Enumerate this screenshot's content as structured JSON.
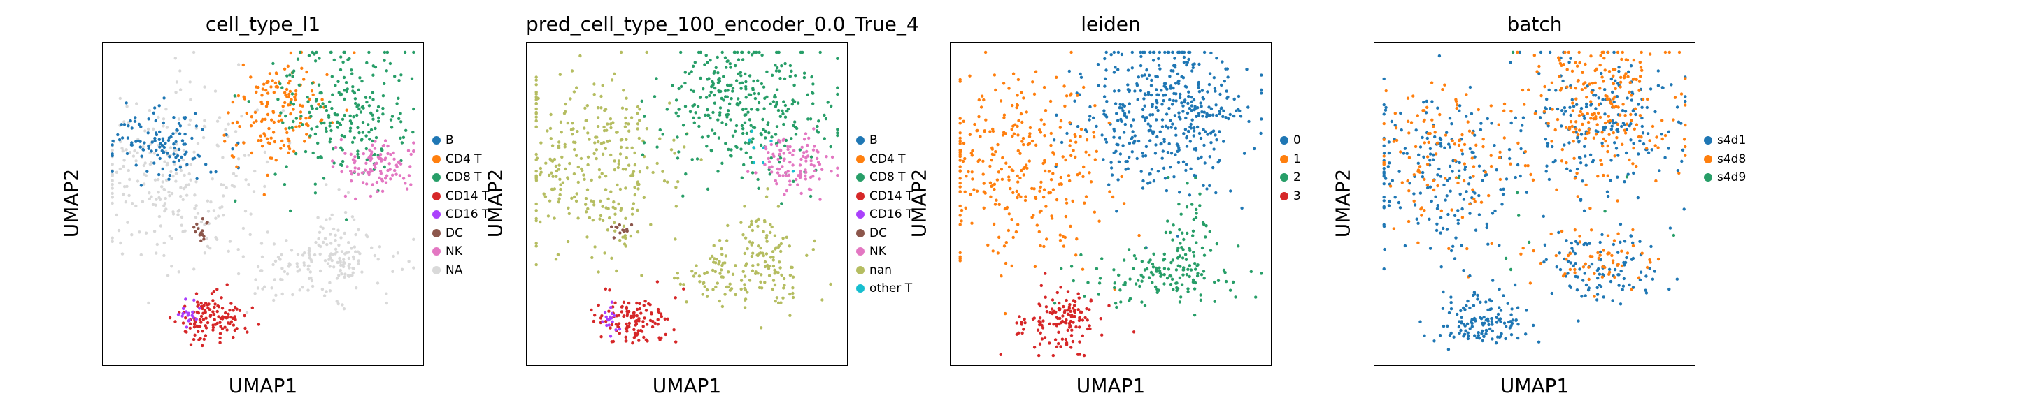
{
  "chart_data": [
    {
      "type": "scatter",
      "title": "cell_type_l1",
      "xlabel": "UMAP1",
      "ylabel": "UMAP2",
      "grid": false,
      "legend_position": "right",
      "legend": [
        {
          "name": "B",
          "color": "#1f77b4"
        },
        {
          "name": "CD4 T",
          "color": "#ff7f0e"
        },
        {
          "name": "CD8 T",
          "color": "#279e68"
        },
        {
          "name": "CD14 T",
          "color": "#d62728"
        },
        {
          "name": "CD16 T",
          "color": "#aa40fc"
        },
        {
          "name": "DC",
          "color": "#8c564b"
        },
        {
          "name": "NK",
          "color": "#e377c2"
        },
        {
          "name": "NA",
          "color": "#d9d9d9"
        }
      ],
      "clusters": [
        {
          "label": "NA",
          "center": [
            0.22,
            0.42
          ],
          "spread": [
            0.14,
            0.13
          ],
          "n": 260
        },
        {
          "label": "NA",
          "center": [
            0.68,
            0.7
          ],
          "spread": [
            0.12,
            0.05
          ],
          "n": 120
        },
        {
          "label": "NA",
          "center": [
            0.74,
            0.62
          ],
          "spread": [
            0.04,
            0.08
          ],
          "n": 60
        },
        {
          "label": "B",
          "center": [
            0.18,
            0.32
          ],
          "spread": [
            0.09,
            0.06
          ],
          "n": 120
        },
        {
          "label": "CD4 T",
          "center": [
            0.55,
            0.22
          ],
          "spread": [
            0.08,
            0.09
          ],
          "n": 150
        },
        {
          "label": "CD8 T",
          "center": [
            0.76,
            0.2
          ],
          "spread": [
            0.11,
            0.11
          ],
          "n": 230
        },
        {
          "label": "NK",
          "center": [
            0.86,
            0.38
          ],
          "spread": [
            0.06,
            0.04
          ],
          "n": 100
        },
        {
          "label": "CD14 T",
          "center": [
            0.34,
            0.86
          ],
          "spread": [
            0.06,
            0.04
          ],
          "n": 120
        },
        {
          "label": "CD16 T",
          "center": [
            0.27,
            0.85
          ],
          "spread": [
            0.015,
            0.025
          ],
          "n": 18
        },
        {
          "label": "DC",
          "center": [
            0.3,
            0.58
          ],
          "spread": [
            0.02,
            0.015
          ],
          "n": 15
        }
      ]
    },
    {
      "type": "scatter",
      "title": "pred_cell_type_100_encoder_0.0_True_4",
      "xlabel": "UMAP1",
      "ylabel": "UMAP2",
      "grid": false,
      "legend_position": "right",
      "legend": [
        {
          "name": "B",
          "color": "#1f77b4"
        },
        {
          "name": "CD4 T",
          "color": "#ff7f0e"
        },
        {
          "name": "CD8 T",
          "color": "#279e68"
        },
        {
          "name": "CD14 T",
          "color": "#d62728"
        },
        {
          "name": "CD16 T",
          "color": "#aa40fc"
        },
        {
          "name": "DC",
          "color": "#8c564b"
        },
        {
          "name": "NK",
          "color": "#e377c2"
        },
        {
          "name": "nan",
          "color": "#b5bd61"
        },
        {
          "name": "other T",
          "color": "#17becf"
        }
      ],
      "clusters": [
        {
          "label": "nan",
          "center": [
            0.2,
            0.38
          ],
          "spread": [
            0.14,
            0.14
          ],
          "n": 300
        },
        {
          "label": "nan",
          "center": [
            0.66,
            0.72
          ],
          "spread": [
            0.12,
            0.05
          ],
          "n": 120
        },
        {
          "label": "nan",
          "center": [
            0.74,
            0.62
          ],
          "spread": [
            0.04,
            0.08
          ],
          "n": 60
        },
        {
          "label": "CD8 T",
          "center": [
            0.68,
            0.2
          ],
          "spread": [
            0.13,
            0.11
          ],
          "n": 330
        },
        {
          "label": "NK",
          "center": [
            0.84,
            0.38
          ],
          "spread": [
            0.06,
            0.04
          ],
          "n": 100
        },
        {
          "label": "CD14 T",
          "center": [
            0.34,
            0.86
          ],
          "spread": [
            0.06,
            0.04
          ],
          "n": 120
        },
        {
          "label": "CD16 T",
          "center": [
            0.27,
            0.85
          ],
          "spread": [
            0.015,
            0.025
          ],
          "n": 18
        },
        {
          "label": "DC",
          "center": [
            0.3,
            0.58
          ],
          "spread": [
            0.02,
            0.015
          ],
          "n": 12
        },
        {
          "label": "other T",
          "center": [
            0.7,
            0.3
          ],
          "spread": [
            0.06,
            0.05
          ],
          "n": 8
        }
      ]
    },
    {
      "type": "scatter",
      "title": "leiden",
      "xlabel": "UMAP1",
      "ylabel": "UMAP2",
      "grid": false,
      "legend_position": "right",
      "legend": [
        {
          "name": "0",
          "color": "#1f77b4"
        },
        {
          "name": "1",
          "color": "#ff7f0e"
        },
        {
          "name": "2",
          "color": "#279e68"
        },
        {
          "name": "3",
          "color": "#d62728"
        }
      ],
      "clusters": [
        {
          "label": "0",
          "center": [
            0.68,
            0.22
          ],
          "spread": [
            0.13,
            0.12
          ],
          "n": 430
        },
        {
          "label": "1",
          "center": [
            0.2,
            0.38
          ],
          "spread": [
            0.14,
            0.14
          ],
          "n": 300
        },
        {
          "label": "2",
          "center": [
            0.66,
            0.72
          ],
          "spread": [
            0.12,
            0.05
          ],
          "n": 120
        },
        {
          "label": "2",
          "center": [
            0.74,
            0.62
          ],
          "spread": [
            0.04,
            0.08
          ],
          "n": 60
        },
        {
          "label": "3",
          "center": [
            0.34,
            0.86
          ],
          "spread": [
            0.07,
            0.05
          ],
          "n": 140
        }
      ]
    },
    {
      "type": "scatter",
      "title": "batch",
      "xlabel": "UMAP1",
      "ylabel": "UMAP2",
      "grid": false,
      "legend_position": "right",
      "legend": [
        {
          "name": "s4d1",
          "color": "#1f77b4"
        },
        {
          "name": "s4d8",
          "color": "#ff7f0e"
        },
        {
          "name": "s4d9",
          "color": "#279e68"
        }
      ],
      "clusters": [
        {
          "label": "s4d1",
          "center": [
            0.22,
            0.4
          ],
          "spread": [
            0.14,
            0.14
          ],
          "n": 200
        },
        {
          "label": "s4d8",
          "center": [
            0.22,
            0.38
          ],
          "spread": [
            0.13,
            0.13
          ],
          "n": 120
        },
        {
          "label": "s4d1",
          "center": [
            0.7,
            0.24
          ],
          "spread": [
            0.13,
            0.12
          ],
          "n": 200
        },
        {
          "label": "s4d8",
          "center": [
            0.7,
            0.2
          ],
          "spread": [
            0.13,
            0.11
          ],
          "n": 230
        },
        {
          "label": "s4d1",
          "center": [
            0.68,
            0.7
          ],
          "spread": [
            0.12,
            0.06
          ],
          "n": 110
        },
        {
          "label": "s4d8",
          "center": [
            0.7,
            0.68
          ],
          "spread": [
            0.1,
            0.05
          ],
          "n": 60
        },
        {
          "label": "s4d1",
          "center": [
            0.34,
            0.86
          ],
          "spread": [
            0.07,
            0.05
          ],
          "n": 130
        },
        {
          "label": "s4d9",
          "center": [
            0.5,
            0.4
          ],
          "spread": [
            0.25,
            0.25
          ],
          "n": 10
        }
      ]
    }
  ]
}
